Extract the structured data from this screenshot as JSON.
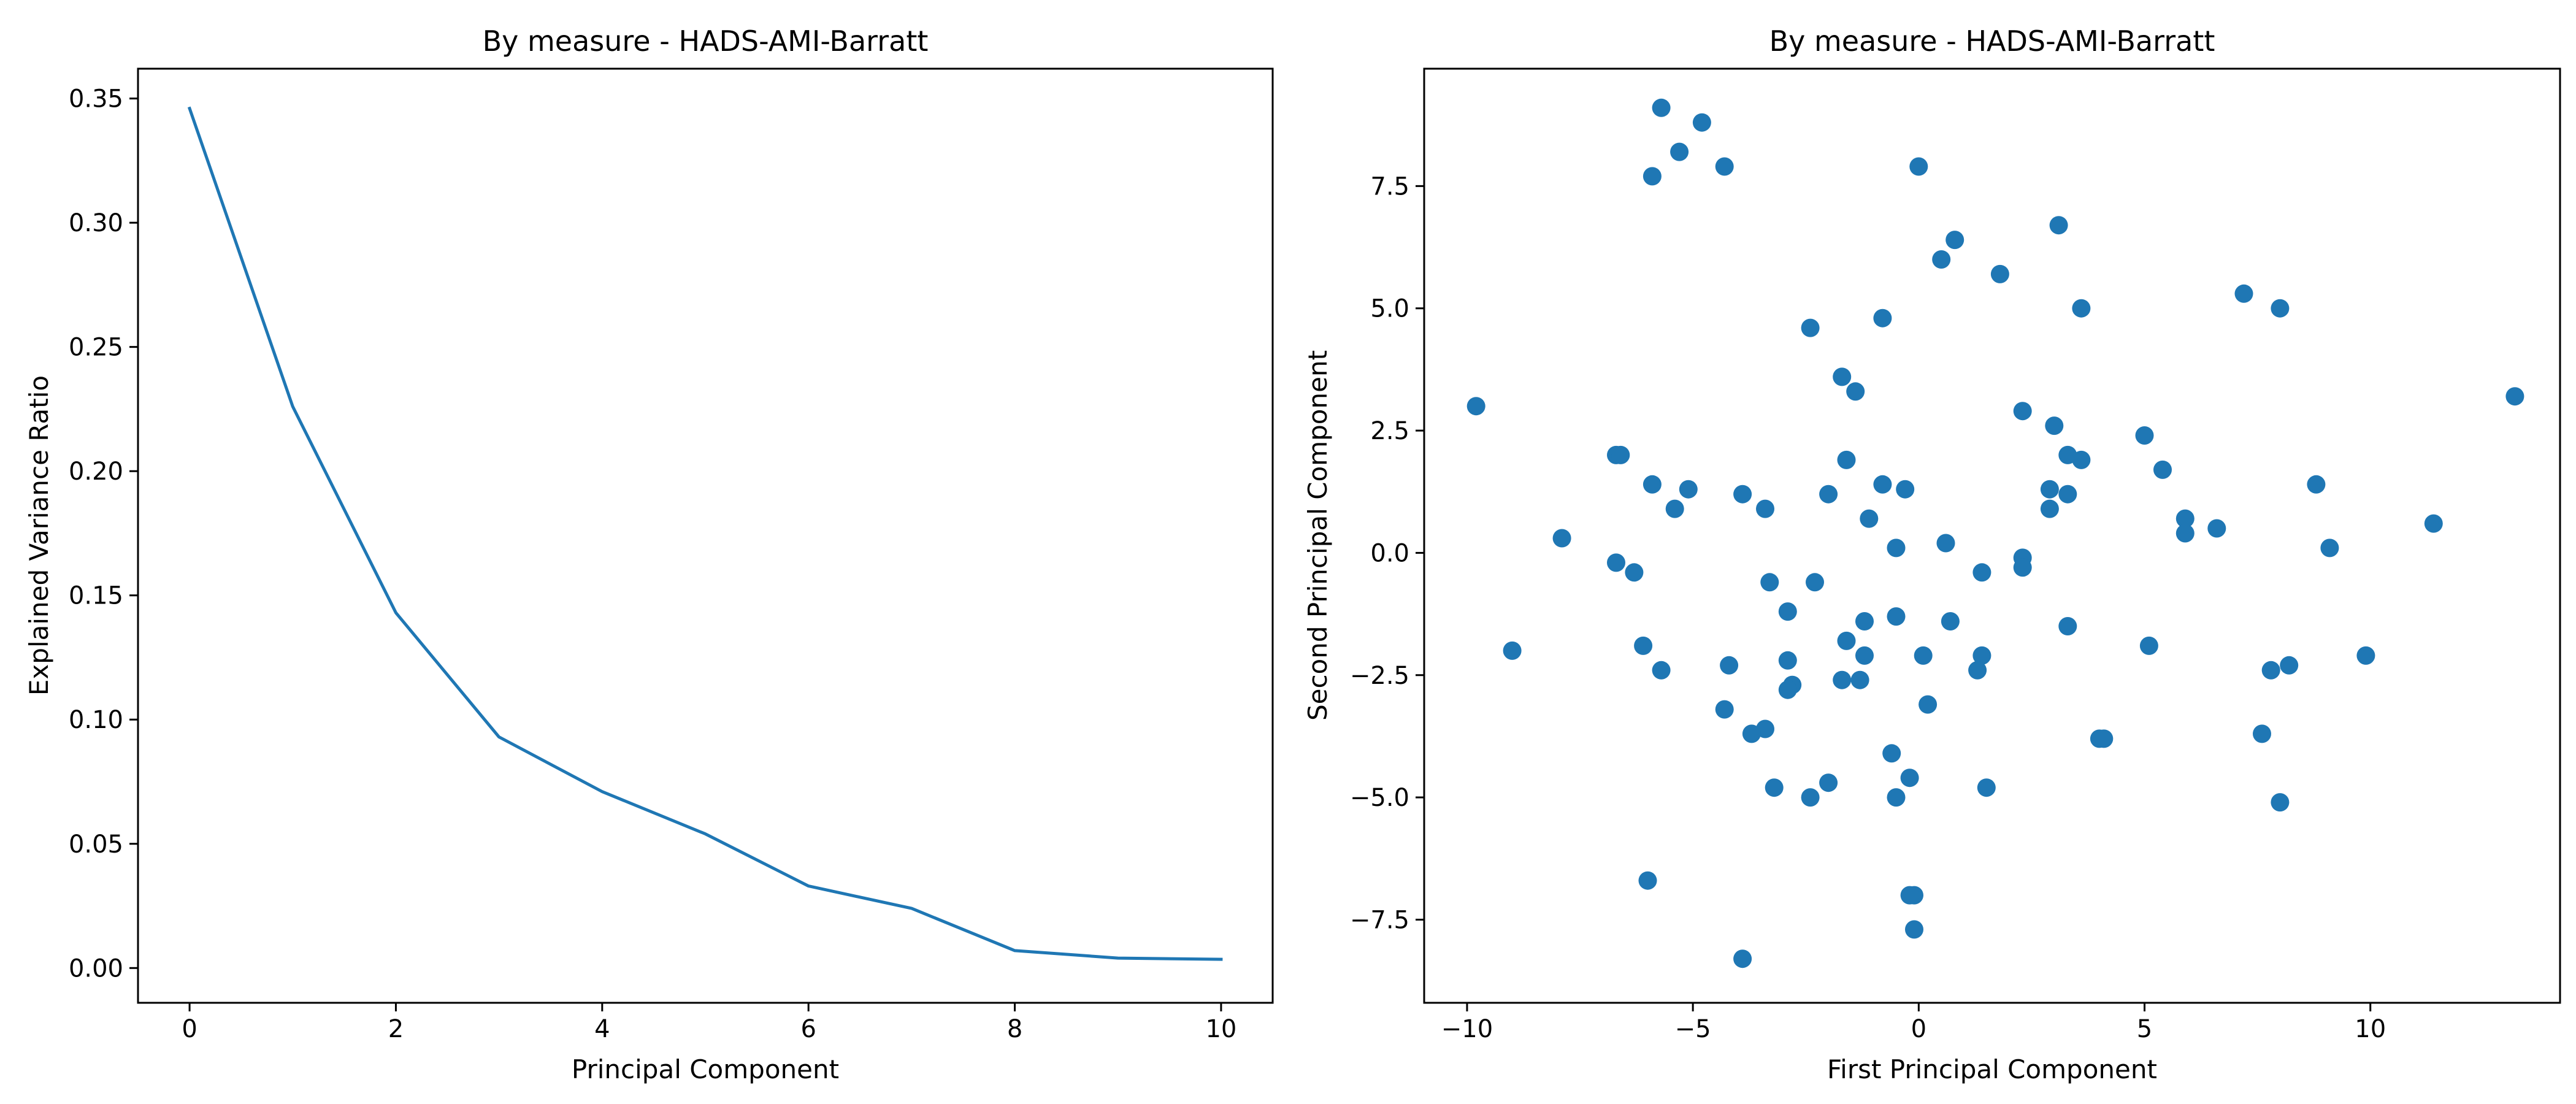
{
  "chart_data": [
    {
      "type": "line",
      "title": "By measure - HADS-AMI-Barratt",
      "xlabel": "Principal Component",
      "ylabel": "Explained Variance Ratio",
      "xlim": [
        -0.5,
        10.5
      ],
      "ylim": [
        -0.014,
        0.362
      ],
      "xticks": [
        0,
        2,
        4,
        6,
        8,
        10
      ],
      "xtick_labels": [
        "0",
        "2",
        "4",
        "6",
        "8",
        "10"
      ],
      "yticks": [
        0.0,
        0.05,
        0.1,
        0.15,
        0.2,
        0.25,
        0.3,
        0.35
      ],
      "ytick_labels": [
        "0.00",
        "0.05",
        "0.10",
        "0.15",
        "0.20",
        "0.25",
        "0.30",
        "0.35"
      ],
      "grid": false,
      "color": "#1f77b4",
      "series": [
        {
          "x": [
            0,
            1,
            2,
            3,
            4,
            5,
            6,
            7,
            8,
            9,
            10
          ],
          "values": [
            0.346,
            0.226,
            0.143,
            0.093,
            0.071,
            0.054,
            0.033,
            0.024,
            0.007,
            0.004,
            0.0035
          ]
        }
      ]
    },
    {
      "type": "scatter",
      "title": "By measure - HADS-AMI-Barratt",
      "xlabel": "First Principal Component",
      "ylabel": "Second Principal Component",
      "xlim": [
        -10.95,
        14.2
      ],
      "ylim": [
        -9.2,
        9.9
      ],
      "xticks": [
        -10,
        -5,
        0,
        5,
        10
      ],
      "xtick_labels": [
        "−10",
        "−5",
        "0",
        "5",
        "10"
      ],
      "yticks": [
        -7.5,
        -5.0,
        -2.5,
        0.0,
        2.5,
        5.0,
        7.5
      ],
      "ytick_labels": [
        "−7.5",
        "−5.0",
        "−2.5",
        "0.0",
        "2.5",
        "5.0",
        "7.5"
      ],
      "grid": false,
      "color": "#1f77b4",
      "points": [
        [
          -5.7,
          9.1
        ],
        [
          -4.8,
          8.8
        ],
        [
          -5.3,
          8.2
        ],
        [
          -5.9,
          7.7
        ],
        [
          -4.3,
          7.9
        ],
        [
          0.0,
          7.9
        ],
        [
          3.1,
          6.7
        ],
        [
          0.8,
          6.4
        ],
        [
          0.5,
          6.0
        ],
        [
          1.8,
          5.7
        ],
        [
          7.2,
          5.3
        ],
        [
          8.0,
          5.0
        ],
        [
          3.6,
          5.0
        ],
        [
          -0.8,
          4.8
        ],
        [
          -2.4,
          4.6
        ],
        [
          -1.7,
          3.6
        ],
        [
          -1.4,
          3.3
        ],
        [
          2.3,
          2.9
        ],
        [
          -9.8,
          3.0
        ],
        [
          13.2,
          3.2
        ],
        [
          3.0,
          2.6
        ],
        [
          -6.7,
          2.0
        ],
        [
          -6.6,
          2.0
        ],
        [
          3.3,
          2.0
        ],
        [
          3.6,
          1.9
        ],
        [
          -1.6,
          1.9
        ],
        [
          5.0,
          2.4
        ],
        [
          5.4,
          1.7
        ],
        [
          -5.9,
          1.4
        ],
        [
          -5.1,
          1.3
        ],
        [
          -0.8,
          1.4
        ],
        [
          -0.3,
          1.3
        ],
        [
          -3.9,
          1.2
        ],
        [
          -2.0,
          1.2
        ],
        [
          2.9,
          1.3
        ],
        [
          3.3,
          1.2
        ],
        [
          8.8,
          1.4
        ],
        [
          -5.4,
          0.9
        ],
        [
          -3.4,
          0.9
        ],
        [
          2.9,
          0.9
        ],
        [
          -1.1,
          0.7
        ],
        [
          5.9,
          0.7
        ],
        [
          6.6,
          0.5
        ],
        [
          5.9,
          0.4
        ],
        [
          11.4,
          0.6
        ],
        [
          -7.9,
          0.3
        ],
        [
          -0.5,
          0.1
        ],
        [
          0.6,
          0.2
        ],
        [
          9.1,
          0.1
        ],
        [
          2.3,
          -0.1
        ],
        [
          -6.7,
          -0.2
        ],
        [
          -6.3,
          -0.4
        ],
        [
          2.3,
          -0.3
        ],
        [
          1.4,
          -0.4
        ],
        [
          -3.3,
          -0.6
        ],
        [
          -2.3,
          -0.6
        ],
        [
          -0.5,
          -1.3
        ],
        [
          0.7,
          -1.4
        ],
        [
          -2.9,
          -1.2
        ],
        [
          -1.2,
          -1.4
        ],
        [
          3.3,
          -1.5
        ],
        [
          -1.6,
          -1.8
        ],
        [
          -6.1,
          -1.9
        ],
        [
          5.1,
          -1.9
        ],
        [
          -9.0,
          -2.0
        ],
        [
          1.4,
          -2.1
        ],
        [
          0.1,
          -2.1
        ],
        [
          -1.2,
          -2.1
        ],
        [
          -4.2,
          -2.3
        ],
        [
          -2.9,
          -2.2
        ],
        [
          9.9,
          -2.1
        ],
        [
          8.2,
          -2.3
        ],
        [
          -5.7,
          -2.4
        ],
        [
          1.3,
          -2.4
        ],
        [
          7.8,
          -2.4
        ],
        [
          -1.7,
          -2.6
        ],
        [
          -1.3,
          -2.6
        ],
        [
          -2.8,
          -2.7
        ],
        [
          -2.9,
          -2.8
        ],
        [
          0.2,
          -3.1
        ],
        [
          -4.3,
          -3.2
        ],
        [
          -3.4,
          -3.6
        ],
        [
          -3.7,
          -3.7
        ],
        [
          7.6,
          -3.7
        ],
        [
          4.0,
          -3.8
        ],
        [
          4.1,
          -3.8
        ],
        [
          -0.6,
          -4.1
        ],
        [
          -0.2,
          -4.6
        ],
        [
          -2.0,
          -4.7
        ],
        [
          -3.2,
          -4.8
        ],
        [
          1.5,
          -4.8
        ],
        [
          -2.4,
          -5.0
        ],
        [
          -0.5,
          -5.0
        ],
        [
          8.0,
          -5.1
        ],
        [
          -6.0,
          -6.7
        ],
        [
          -0.1,
          -7.0
        ],
        [
          -0.2,
          -7.0
        ],
        [
          -0.1,
          -7.7
        ],
        [
          -3.9,
          -8.3
        ]
      ]
    }
  ]
}
